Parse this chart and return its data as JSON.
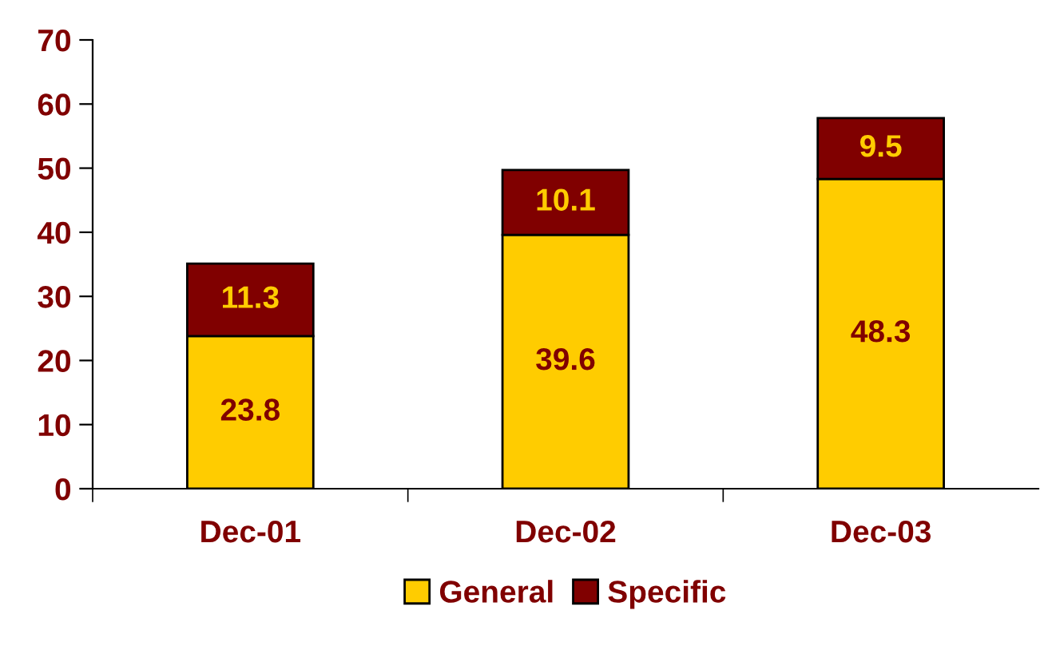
{
  "chart_data": {
    "type": "bar",
    "stacked": true,
    "categories": [
      "Dec-01",
      "Dec-02",
      "Dec-03"
    ],
    "series": [
      {
        "name": "General",
        "color": "#ffcc00",
        "values": [
          23.8,
          39.6,
          48.3
        ]
      },
      {
        "name": "Specific",
        "color": "#800000",
        "values": [
          11.3,
          10.1,
          9.5
        ]
      }
    ],
    "ylim": [
      0,
      70
    ],
    "yticks": [
      0,
      10,
      20,
      30,
      40,
      50,
      60,
      70
    ],
    "grid": false,
    "legend": "bottom",
    "data_labels": true
  }
}
